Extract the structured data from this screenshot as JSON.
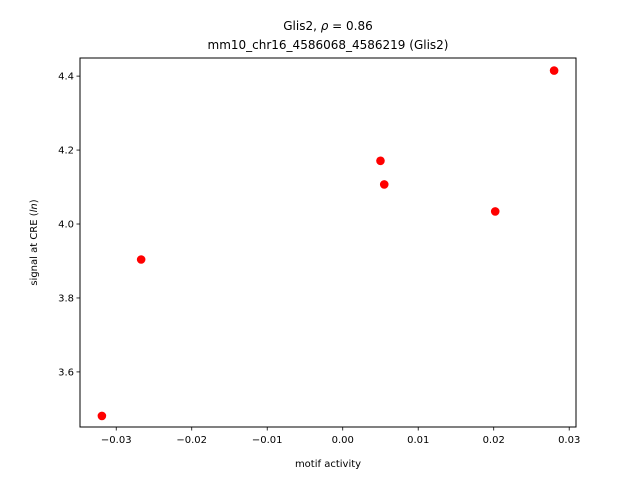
{
  "chart_data": {
    "type": "scatter",
    "title_line1_prefix": "Glis2, ",
    "title_line1_rho": "ρ",
    "title_line1_suffix": " = 0.86",
    "title_line2": "mm10_chr16_4586068_4586219 (Glis2)",
    "xlabel": "motif activity",
    "ylabel_prefix": "signal at CRE (",
    "ylabel_italic": "ln",
    "ylabel_suffix": ")",
    "xlim": [
      -0.0348,
      0.0309
    ],
    "ylim": [
      3.451,
      4.449
    ],
    "xticks": [
      {
        "value": -0.03,
        "label": "−0.03"
      },
      {
        "value": -0.02,
        "label": "−0.02"
      },
      {
        "value": -0.01,
        "label": "−0.01"
      },
      {
        "value": 0.0,
        "label": "0.00"
      },
      {
        "value": 0.01,
        "label": "0.01"
      },
      {
        "value": 0.02,
        "label": "0.02"
      },
      {
        "value": 0.03,
        "label": "0.03"
      }
    ],
    "yticks": [
      {
        "value": 3.6,
        "label": "3.6"
      },
      {
        "value": 3.8,
        "label": "3.8"
      },
      {
        "value": 4.0,
        "label": "4.0"
      },
      {
        "value": 4.2,
        "label": "4.2"
      },
      {
        "value": 4.4,
        "label": "4.4"
      }
    ],
    "grid": false,
    "point_color": "#ff0000",
    "points": [
      {
        "x": -0.0319,
        "y": 3.481
      },
      {
        "x": -0.0267,
        "y": 3.904
      },
      {
        "x": 0.005,
        "y": 4.171
      },
      {
        "x": 0.0055,
        "y": 4.107
      },
      {
        "x": 0.0202,
        "y": 4.034
      },
      {
        "x": 0.028,
        "y": 4.415
      }
    ]
  }
}
